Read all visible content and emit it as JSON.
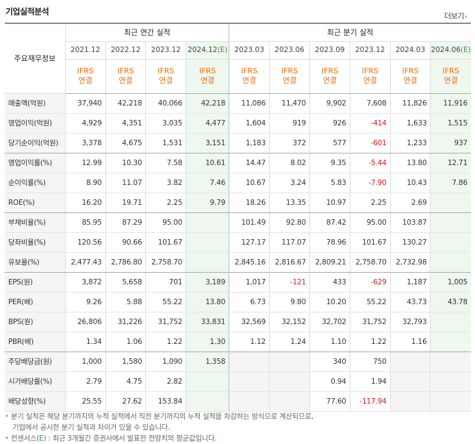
{
  "title": "기업실적분석",
  "more": "더보기",
  "header": {
    "row_label": "주요재무정보",
    "annual_group": "최근 연간 실적",
    "quarter_group": "최근 분기 실적",
    "annual_periods": [
      {
        "date": "2021.12",
        "est": ""
      },
      {
        "date": "2022.12",
        "est": ""
      },
      {
        "date": "2023.12",
        "est": ""
      },
      {
        "date": "2024.12",
        "est": "(E)"
      }
    ],
    "quarter_periods": [
      {
        "date": "2023.03",
        "est": ""
      },
      {
        "date": "2023.06",
        "est": ""
      },
      {
        "date": "2023.09",
        "est": ""
      },
      {
        "date": "2023.12",
        "est": ""
      },
      {
        "date": "2024.03",
        "est": ""
      },
      {
        "date": "2024.06",
        "est": "(E)"
      }
    ],
    "std_top": "IFRS",
    "std_bottom": "연결"
  },
  "rows": [
    {
      "label": "매출액(억원)",
      "values": [
        "37,940",
        "42,218",
        "40,066",
        "42,218",
        "11,086",
        "11,470",
        "9,902",
        "7,608",
        "11,826",
        "11,916"
      ]
    },
    {
      "label": "영업이익(억원)",
      "values": [
        "4,929",
        "4,351",
        "3,035",
        "4,477",
        "1,604",
        "919",
        "926",
        "-414",
        "1,633",
        "1,515"
      ]
    },
    {
      "label": "당기순이익(억원)",
      "values": [
        "3,378",
        "4,675",
        "1,531",
        "3,151",
        "1,183",
        "372",
        "577",
        "-601",
        "1,233",
        "937"
      ]
    },
    {
      "label": "영업이익률(%)",
      "values": [
        "12.99",
        "10.30",
        "7.58",
        "10.61",
        "14.47",
        "8.02",
        "9.35",
        "-5.44",
        "13.80",
        "12.71"
      ]
    },
    {
      "label": "순이익률(%)",
      "values": [
        "8.90",
        "11.07",
        "3.82",
        "7.46",
        "10.67",
        "3.24",
        "5.83",
        "-7.90",
        "10.43",
        "7.86"
      ]
    },
    {
      "label": "ROE(%)",
      "values": [
        "16.20",
        "19.71",
        "2.25",
        "9.79",
        "18.26",
        "13.35",
        "10.97",
        "2.25",
        "2.69",
        ""
      ]
    },
    {
      "label": "부채비율(%)",
      "values": [
        "85.95",
        "87.29",
        "95.00",
        "",
        "101.49",
        "92.80",
        "87.42",
        "95.00",
        "103.87",
        ""
      ]
    },
    {
      "label": "당좌비율(%)",
      "values": [
        "120.56",
        "90.66",
        "101.67",
        "",
        "127.17",
        "117.07",
        "78.96",
        "101.67",
        "130.27",
        ""
      ]
    },
    {
      "label": "유보율(%)",
      "values": [
        "2,477.43",
        "2,786.80",
        "2,758.70",
        "",
        "2,845.16",
        "2,816.67",
        "2,809.21",
        "2,758.70",
        "2,732.98",
        ""
      ]
    },
    {
      "label": "EPS(원)",
      "values": [
        "3,872",
        "5,658",
        "701",
        "3,189",
        "1,017",
        "-121",
        "433",
        "-629",
        "1,187",
        "1,005"
      ]
    },
    {
      "label": "PER(배)",
      "values": [
        "9.26",
        "5.88",
        "55.22",
        "13.80",
        "6.73",
        "9.80",
        "10.20",
        "55.22",
        "43.73",
        "43.78"
      ]
    },
    {
      "label": "BPS(원)",
      "values": [
        "26,806",
        "31,226",
        "31,752",
        "33,831",
        "32,569",
        "32,152",
        "32,702",
        "31,752",
        "32,793",
        ""
      ]
    },
    {
      "label": "PBR(배)",
      "values": [
        "1.34",
        "1.06",
        "1.22",
        "1.30",
        "1.12",
        "1.24",
        "1.10",
        "1.22",
        "1.16",
        ""
      ]
    },
    {
      "label": "주당배당금(원)",
      "values": [
        "1,000",
        "1,580",
        "1,090",
        "1,358",
        "",
        "",
        "340",
        "750",
        "",
        ""
      ]
    },
    {
      "label": "시가배당률(%)",
      "values": [
        "2.79",
        "4.75",
        "2.82",
        "",
        "",
        "",
        "0.94",
        "1.94",
        "",
        ""
      ]
    },
    {
      "label": "배당성향(%)",
      "values": [
        "25.55",
        "27.62",
        "153.84",
        "",
        "",
        "",
        "77.60",
        "-117.94",
        "",
        ""
      ]
    }
  ],
  "notes": {
    "line1": "분기 실적은 해당 분기까지의 누적 실적에서 직전 분기까지의 누적 실적을 차감하는 방식으로 계산되므로,",
    "line2": "기업에서 공시한 분기 실적과 차이가 있을 수 있습니다.",
    "line3_prefix": "컨센서스(",
    "line3_e": "E",
    "line3_suffix": ") : 최근 3개월간 증권사에서 발표한 전망치의 평균값입니다."
  },
  "colors": {
    "ifrs": "#ec6c10",
    "estimate_bg": "#eef8ee",
    "estimate_text": "#3a8f3a",
    "negative": "#d6161b"
  }
}
